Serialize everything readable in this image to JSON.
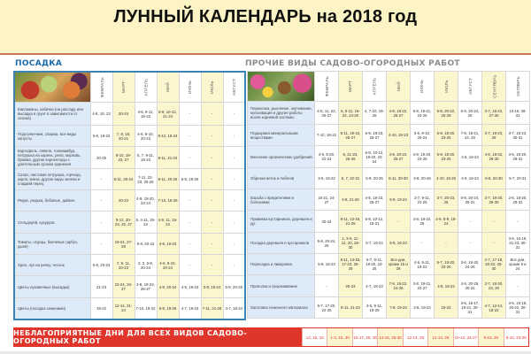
{
  "title": "ЛУННЫЙ КАЛЕНДАРЬ на 2018 год",
  "planting": {
    "heading": "ПОСАДКА",
    "months": [
      "ФЕВРАЛЬ",
      "МАРТ",
      "АПРЕЛЬ",
      "МАЙ",
      "ИЮНЬ",
      "ИЮЛЬ",
      "АВГУСТ"
    ],
    "rows": [
      {
        "label": "Баклажаны, кабачки (на рассаду или высадка в грунт в зависимости от сезона)",
        "days": [
          "4-8, 19, 23",
          "20-24",
          "4-6, 8-11, 19-23",
          "5-9, 10-12, 21-24",
          "-",
          "-",
          "-"
        ]
      },
      {
        "label": "Подсолнечник, спаржа, все виды капусты",
        "days": [
          "5-8, 19-22",
          "7, 8, 18, 20-21",
          "4-6, 8-10, 20-23",
          "8-12, 19-24",
          "-",
          "-",
          "-"
        ]
      },
      {
        "label": "Картофель, свёкла, топинамбур, петрушка на корень, репа, морковь, брюква, другие корнеплоды с длительным сроком хранения",
        "days": [
          "20-25",
          "8-10, 19-23, 27",
          "5, 7, 9-11, 19-23",
          "9-11, 21-23",
          "-",
          "-",
          "-"
        ]
      },
      {
        "label": "Салат, листовая петрушка, горчица, укроп, кинза, другие виды зелени и сладкий перец",
        "days": [
          "-",
          "8-11, 20-24",
          "7-11, 22-23, 25-26",
          "8-11, 20-25",
          "5-9, 19-25",
          "-",
          "-"
        ]
      },
      {
        "label": "Редис, редька, бобовые, дайкон",
        "days": [
          "-",
          "20-23",
          "4-9, 19-20, 23-24",
          "7-10, 19-26",
          "-",
          "-",
          "-"
        ]
      },
      {
        "label": "Сельдерей, кукуруза",
        "days": [
          "-",
          "9-12, 20-24, 25, 27",
          "5, 4-11, 19-23",
          "4-9, 11, 19-23",
          "-",
          "-",
          "-"
        ]
      },
      {
        "label": "Томаты, огурцы, бахчевые (арбуз, дыня)",
        "days": [
          "-",
          "19-24, 27-28",
          "5-9, 20-24",
          "4-9, 19-23",
          "-",
          "-",
          "-"
        ]
      },
      {
        "label": "Хрен, лук на репку, чеснок",
        "days": [
          "5-8, 20-23",
          "7, 9, 11, 20-23",
          "2, 3, 5-8, 20-24",
          "4-6, 8-10, 20-24",
          "-",
          "-",
          "-"
        ]
      },
      {
        "label": "Цветы луковичные (высадка)",
        "days": [
          "21-23",
          "22-24, 26-27",
          "4-8, 19-23, 26-27",
          "4-8, 20-24",
          "4-8, 19-23",
          "3-8, 19-24",
          "6-9, 20-25"
        ]
      },
      {
        "label": "Цветы (посадка семенами)",
        "days": [
          "19-22",
          "12-14, 21-24",
          "7-10, 19-22",
          "5-9, 19-25",
          "4-7, 19-23",
          "7-11, 21-25",
          "4-7, 18-24"
        ]
      }
    ]
  },
  "other_works": {
    "heading": "ПРОЧИЕ ВИДЫ САДОВО-ОГОРОДНЫХ РАБОТ",
    "months": [
      "ФЕВРАЛЬ",
      "МАРТ",
      "АПРЕЛЬ",
      "МАЙ",
      "ИЮНЬ",
      "ИЮЛЬ",
      "АВГУСТ",
      "СЕНТЯБРЬ",
      "ОКТЯБРЬ"
    ],
    "rows": [
      {
        "label": "Перекопка, рыхление, окучивание, культивация и другие работы возле корневой системы",
        "days": [
          "4-5, 11, 22, 26-27",
          "6, 8-11, 19-22, 24-26",
          "4, 7-10, 19-26",
          "4-9, 19-22, 25-27",
          "5-9, 19-21, 23-25",
          "5-8, 20-22, 25-28",
          "5-9, 20-24, 26",
          "3-7, 18-22, 27-30",
          "13-16, 28-31"
        ]
      },
      {
        "label": "Подкормка минеральными веществами",
        "days": [
          "7-10, 18-22",
          "8-11, 19-22, 25-27",
          "5-9, 18-23, 26-27",
          "4-10, 19-23",
          "3-6, 8-10, 20-24",
          "6-9, 18-20, 23-25",
          "7-9, 18-21, 24, 30",
          "3-7, 19-23, 29",
          "3-7, 18-23, 30-31"
        ]
      },
      {
        "label": "Внесение органических удобрений",
        "days": [
          "4-6, 8-20, 22-24",
          "6, 21-23, 26-28",
          "5-8, 10-12, 18-20, 23-24",
          "4-8, 20-23, 25-27",
          "4-9, 19-20, 22-25",
          "5-9, 18-20, 23-25",
          "2-6, 18-23",
          "4-8, 18-22, 28-30",
          "3-5, 18-20, 29-31"
        ]
      },
      {
        "label": "Обрезка веток и побегов",
        "days": [
          "3-5, 18-22",
          "5, 7, 22-31",
          "5-9, 20-25",
          "5-11, 20-30",
          "3-8, 20-26",
          "4-10, 19-26",
          "4-9, 18-23",
          "5-8, 20-30",
          "5-7, 20-31"
        ]
      },
      {
        "label": "Борьба с вредителями и болезнями",
        "days": [
          "16-21, 24-27",
          "4-8, 21-26",
          "4-5, 18-23, 25-27",
          "5-9, 19-24",
          "3-7, 9-11, 21-25",
          "3-7, 20-23, 25",
          "5-9, 20-24, 30-31",
          "3-7, 18-20, 29-30",
          "2-6, 18-20, 29-31"
        ]
      },
      {
        "label": "Прививка кустарников, деревьев и др.",
        "days": [
          "20-24",
          "8-11, 13-15, 21-25",
          "5-8, 10-12, 18-21",
          "-",
          "4-8, 18-22, 25",
          "4-6, 8-9, 19-24",
          "-",
          "-",
          "-"
        ]
      },
      {
        "label": "Посадка деревьев и кустарников",
        "days": [
          "5-8, 20-24, 26",
          "1, 3-6, 11-12, 20, 26-30",
          "5-7, 19-24",
          "5-9, 18-23",
          "-",
          "-",
          "-",
          "-",
          "3-6, 16-18, 21-23, 30-31"
        ]
      },
      {
        "label": "Пересадка и пикировка",
        "days": [
          "5-8, 18-23",
          "8-11, 13-15, 17-23, 26-29",
          "5-7, 9-11, 19-20, 23-25",
          "Все дни, кроме 15 и 29",
          "4-6, 8-11, 19-23",
          "6-7, 18-20, 23-26",
          "3-6, 18-20, 24-26",
          "2-7, 17-18, 20-22, 29-30",
          "Все дни, кроме 9 и 24"
        ]
      },
      {
        "label": "Прополка и прореживание",
        "days": [
          "-",
          "20-23",
          "4-7, 18-23",
          "7-9, 19-22, 24-26",
          "3-8, 19-21, 22-27",
          "4-8, 18-22",
          "4-9, 20-25, 30-31",
          "3-7, 18-20, 23, 30",
          "-"
        ]
      },
      {
        "label": "Заготовка семенного материала",
        "days": [
          "5-7, 17-20, 22-25",
          "8-11, 21-23",
          "3-6, 9-11, 19-25",
          "7-9, 19-24",
          "3-5, 19-24",
          "19-22",
          "3-6, 16-17, 19-21, 30-31",
          "4-7, 12-14, 18-22",
          "3-5, 15-18, 20-22, 30-31"
        ]
      }
    ]
  },
  "unfavorable": {
    "label": "НЕБЛАГОПРИЯТНЫЕ ДНИ ДЛЯ ВСЕХ ВИДОВ САДОВО-ОГОРОДНЫХ РАБОТ",
    "days": [
      "14, 15, 16",
      "1-3, 16, 30",
      "15-17, 29, 30",
      "14-16, 28-30",
      "12-14, 29",
      "12-14, 28",
      "10-12, 24-27",
      "8-10, 25",
      "8-10, 23-25"
    ]
  },
  "colors": {
    "accent_blue": "#1b6aa8",
    "label_bg": "#dcebf7",
    "highlight_col": "#fcf6cf",
    "warning_red": "#e0352b",
    "title_bg": "#fcf4c4"
  },
  "images": {
    "planting": "vegetables-photo",
    "other_works": "flowers-garden-photo"
  }
}
